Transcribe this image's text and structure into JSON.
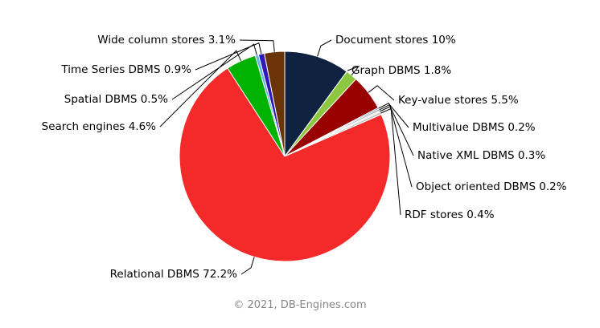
{
  "chart_data": {
    "type": "pie",
    "start_category": "Document stores",
    "direction": "clockwise",
    "slices": [
      {
        "label": "Document stores",
        "value": 10,
        "color": "#0f2340"
      },
      {
        "label": "Graph DBMS",
        "value": 1.8,
        "color": "#8dc63f"
      },
      {
        "label": "Key-value stores",
        "value": 5.5,
        "color": "#990000"
      },
      {
        "label": "Multivalue DBMS",
        "value": 0.2,
        "color": "#2f6fa8"
      },
      {
        "label": "Native XML DBMS",
        "value": 0.3,
        "color": "#a8a8a8"
      },
      {
        "label": "Object oriented DBMS",
        "value": 0.2,
        "color": "#d9d2c3"
      },
      {
        "label": "RDF stores",
        "value": 0.4,
        "color": "#c8c8c8"
      },
      {
        "label": "Relational DBMS",
        "value": 72.2,
        "color": "#f42a2a"
      },
      {
        "label": "Search engines",
        "value": 4.6,
        "color": "#00b200"
      },
      {
        "label": "Spatial DBMS",
        "value": 0.5,
        "color": "#5bb3e6"
      },
      {
        "label": "Time Series DBMS",
        "value": 0.9,
        "color": "#3218b8"
      },
      {
        "label": "Wide column stores",
        "value": 3.1,
        "color": "#6b3408"
      }
    ],
    "data_labels": [
      "Document stores 10%",
      "Graph DBMS 1.8%",
      "Key-value stores 5.5%",
      "Multivalue DBMS 0.2%",
      "Native XML DBMS 0.3%",
      "Object oriented DBMS 0.2%",
      "RDF stores 0.4%",
      "Relational DBMS 72.2%",
      "Search engines 4.6%",
      "Spatial DBMS 0.5%",
      "Time Series DBMS 0.9%",
      "Wide column stores 3.1%"
    ],
    "title": "",
    "legend": "none"
  },
  "credit": "© 2021, DB-Engines.com"
}
